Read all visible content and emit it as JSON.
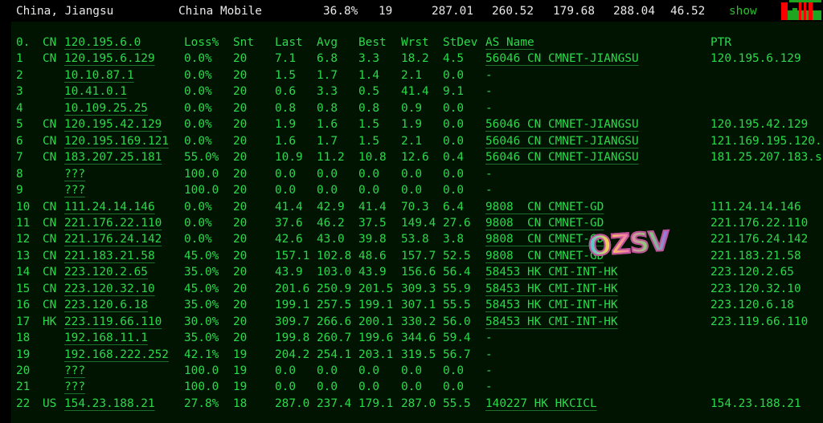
{
  "summary": {
    "location": "China, Jiangsu",
    "isp": "China Mobile",
    "loss": "36.8%",
    "snt": "19",
    "last": "287.01",
    "avg": "260.52",
    "best": "179.68",
    "wrst": "288.04",
    "stdev": "46.52",
    "show_label": "show",
    "sparkline_colors": {
      "ok": "#1fa51f",
      "loss": "#ff0000"
    }
  },
  "table": {
    "headers": {
      "no": "0.",
      "cc": "CN",
      "host": "120.195.6.0",
      "loss": "Loss%",
      "snt": "Snt",
      "last": "Last",
      "avg": "Avg",
      "best": "Best",
      "wrst": "Wrst",
      "stdev": "StDev",
      "as": "AS Name",
      "ptr": "PTR"
    },
    "rows": [
      {
        "no": "1",
        "cc": "CN",
        "host": "120.195.6.129",
        "loss": "0.0%",
        "snt": "20",
        "last": "7.1",
        "avg": "6.8",
        "best": "3.3",
        "wrst": "18.2",
        "stdev": "4.5",
        "as": "56046 CN CMNET-JIANGSU",
        "ptr": "120.195.6.129"
      },
      {
        "no": "2",
        "cc": "",
        "host": "10.10.87.1",
        "loss": "0.0%",
        "snt": "20",
        "last": "1.5",
        "avg": "1.7",
        "best": "1.4",
        "wrst": "2.1",
        "stdev": "0.0",
        "as": "-",
        "ptr": ""
      },
      {
        "no": "3",
        "cc": "",
        "host": "10.41.0.1",
        "loss": "0.0%",
        "snt": "20",
        "last": "0.6",
        "avg": "3.3",
        "best": "0.5",
        "wrst": "41.4",
        "stdev": "9.1",
        "as": "-",
        "ptr": ""
      },
      {
        "no": "4",
        "cc": "",
        "host": "10.109.25.25",
        "loss": "0.0%",
        "snt": "20",
        "last": "0.8",
        "avg": "0.8",
        "best": "0.8",
        "wrst": "0.9",
        "stdev": "0.0",
        "as": "-",
        "ptr": ""
      },
      {
        "no": "5",
        "cc": "CN",
        "host": "120.195.42.129",
        "loss": "0.0%",
        "snt": "20",
        "last": "1.9",
        "avg": "1.6",
        "best": "1.5",
        "wrst": "1.9",
        "stdev": "0.0",
        "as": "56046 CN CMNET-JIANGSU",
        "ptr": "120.195.42.129"
      },
      {
        "no": "6",
        "cc": "CN",
        "host": "120.195.169.121",
        "loss": "0.0%",
        "snt": "20",
        "last": "1.6",
        "avg": "1.7",
        "best": "1.5",
        "wrst": "2.1",
        "stdev": "0.0",
        "as": "56046 CN CMNET-JIANGSU",
        "ptr": "121.169.195.120."
      },
      {
        "no": "7",
        "cc": "CN",
        "host": "183.207.25.181",
        "loss": "55.0%",
        "snt": "20",
        "last": "10.9",
        "avg": "11.2",
        "best": "10.8",
        "wrst": "12.6",
        "stdev": "0.4",
        "as": "56046 CN CMNET-JIANGSU",
        "ptr": "181.25.207.183.s"
      },
      {
        "no": "8",
        "cc": "",
        "host": "???",
        "loss": "100.0",
        "snt": "20",
        "last": "0.0",
        "avg": "0.0",
        "best": "0.0",
        "wrst": "0.0",
        "stdev": "0.0",
        "as": "-",
        "ptr": ""
      },
      {
        "no": "9",
        "cc": "",
        "host": "???",
        "loss": "100.0",
        "snt": "20",
        "last": "0.0",
        "avg": "0.0",
        "best": "0.0",
        "wrst": "0.0",
        "stdev": "0.0",
        "as": "-",
        "ptr": ""
      },
      {
        "no": "10",
        "cc": "CN",
        "host": "111.24.14.146",
        "loss": "0.0%",
        "snt": "20",
        "last": "41.4",
        "avg": "42.9",
        "best": "41.4",
        "wrst": "70.3",
        "stdev": "6.4",
        "as": "9808  CN CMNET-GD",
        "ptr": "111.24.14.146"
      },
      {
        "no": "11",
        "cc": "CN",
        "host": "221.176.22.110",
        "loss": "0.0%",
        "snt": "20",
        "last": "37.6",
        "avg": "46.2",
        "best": "37.5",
        "wrst": "149.4",
        "stdev": "27.6",
        "as": "9808  CN CMNET-GD",
        "ptr": "221.176.22.110"
      },
      {
        "no": "12",
        "cc": "CN",
        "host": "221.176.24.142",
        "loss": "0.0%",
        "snt": "20",
        "last": "42.6",
        "avg": "43.0",
        "best": "39.8",
        "wrst": "53.8",
        "stdev": "3.8",
        "as": "9808  CN CMNET-GD",
        "ptr": "221.176.24.142"
      },
      {
        "no": "13",
        "cc": "CN",
        "host": "221.183.21.58",
        "loss": "45.0%",
        "snt": "20",
        "last": "157.1",
        "avg": "102.8",
        "best": "48.6",
        "wrst": "157.7",
        "stdev": "52.5",
        "as": "9808  CN CMNET-GD",
        "ptr": "221.183.21.58"
      },
      {
        "no": "14",
        "cc": "CN",
        "host": "223.120.2.65",
        "loss": "35.0%",
        "snt": "20",
        "last": "43.9",
        "avg": "103.0",
        "best": "43.9",
        "wrst": "156.6",
        "stdev": "56.4",
        "as": "58453 HK CMI-INT-HK",
        "ptr": "223.120.2.65"
      },
      {
        "no": "15",
        "cc": "CN",
        "host": "223.120.32.10",
        "loss": "45.0%",
        "snt": "20",
        "last": "201.6",
        "avg": "250.9",
        "best": "201.5",
        "wrst": "309.3",
        "stdev": "55.9",
        "as": "58453 HK CMI-INT-HK",
        "ptr": "223.120.32.10"
      },
      {
        "no": "16",
        "cc": "CN",
        "host": "223.120.6.18",
        "loss": "35.0%",
        "snt": "20",
        "last": "199.1",
        "avg": "257.5",
        "best": "199.1",
        "wrst": "307.1",
        "stdev": "55.5",
        "as": "58453 HK CMI-INT-HK",
        "ptr": "223.120.6.18"
      },
      {
        "no": "17",
        "cc": "HK",
        "host": "223.119.66.110",
        "loss": "30.0%",
        "snt": "20",
        "last": "309.7",
        "avg": "266.6",
        "best": "200.1",
        "wrst": "330.2",
        "stdev": "56.0",
        "as": "58453 HK CMI-INT-HK",
        "ptr": "223.119.66.110"
      },
      {
        "no": "18",
        "cc": "",
        "host": "192.168.11.1",
        "loss": "35.0%",
        "snt": "20",
        "last": "199.8",
        "avg": "260.7",
        "best": "199.6",
        "wrst": "344.6",
        "stdev": "59.4",
        "as": "-",
        "ptr": ""
      },
      {
        "no": "19",
        "cc": "",
        "host": "192.168.222.252",
        "loss": "42.1%",
        "snt": "19",
        "last": "204.2",
        "avg": "254.1",
        "best": "203.1",
        "wrst": "319.5",
        "stdev": "56.7",
        "as": "-",
        "ptr": ""
      },
      {
        "no": "20",
        "cc": "",
        "host": "???",
        "loss": "100.0",
        "snt": "19",
        "last": "0.0",
        "avg": "0.0",
        "best": "0.0",
        "wrst": "0.0",
        "stdev": "0.0",
        "as": "-",
        "ptr": ""
      },
      {
        "no": "21",
        "cc": "",
        "host": "???",
        "loss": "100.0",
        "snt": "19",
        "last": "0.0",
        "avg": "0.0",
        "best": "0.0",
        "wrst": "0.0",
        "stdev": "0.0",
        "as": "-",
        "ptr": ""
      },
      {
        "no": "22",
        "cc": "US",
        "host": "154.23.188.21",
        "loss": "27.8%",
        "snt": "18",
        "last": "287.0",
        "avg": "237.4",
        "best": "179.1",
        "wrst": "287.0",
        "stdev": "55.5",
        "as": "140227 HK HKCICL",
        "ptr": "154.23.188.21"
      }
    ]
  },
  "watermark": "OZSV"
}
